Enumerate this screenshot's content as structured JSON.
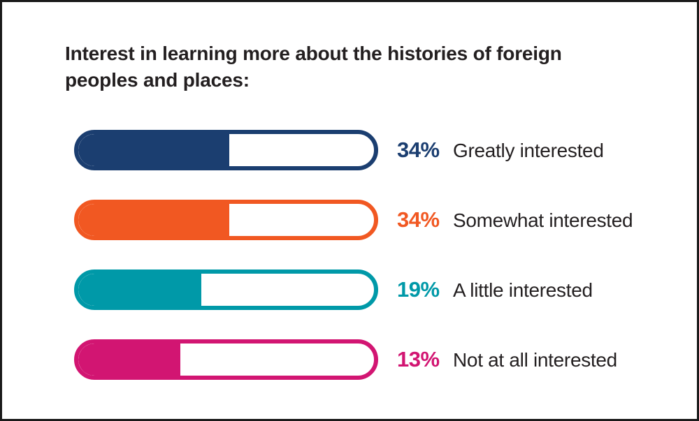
{
  "ui": {
    "title_line1": "Interest in learning more about the histories of foreign",
    "title_line2": "peoples and places:",
    "text_color": "#231f20",
    "frame_border_color": "#1a1a1a",
    "rows": [
      {
        "value_label": "34%",
        "category": "Greatly interested",
        "color": "#1b3e70",
        "fill_width": "51%"
      },
      {
        "value_label": "34%",
        "category": "Somewhat interested",
        "color": "#f15822",
        "fill_width": "51%"
      },
      {
        "value_label": "19%",
        "category": "A little interested",
        "color": "#0099a8",
        "fill_width": "41.5%"
      },
      {
        "value_label": "13%",
        "category": "Not at all interested",
        "color": "#d21572",
        "fill_width": "34.5%"
      }
    ]
  },
  "chart_data": {
    "type": "bar",
    "title": "Interest in learning more about the histories of foreign peoples and places:",
    "categories": [
      "Greatly interested",
      "Somewhat interested",
      "A little interested",
      "Not at all interested"
    ],
    "values": [
      34,
      34,
      19,
      13
    ],
    "unit": "%",
    "orientation": "horizontal",
    "xlabel": "",
    "ylabel": "",
    "legend": "none",
    "grid": false,
    "bar_colors": [
      "#1b3e70",
      "#f15822",
      "#0099a8",
      "#d21572"
    ],
    "visual_fill_fraction_of_track": [
      0.51,
      0.51,
      0.415,
      0.345
    ]
  }
}
